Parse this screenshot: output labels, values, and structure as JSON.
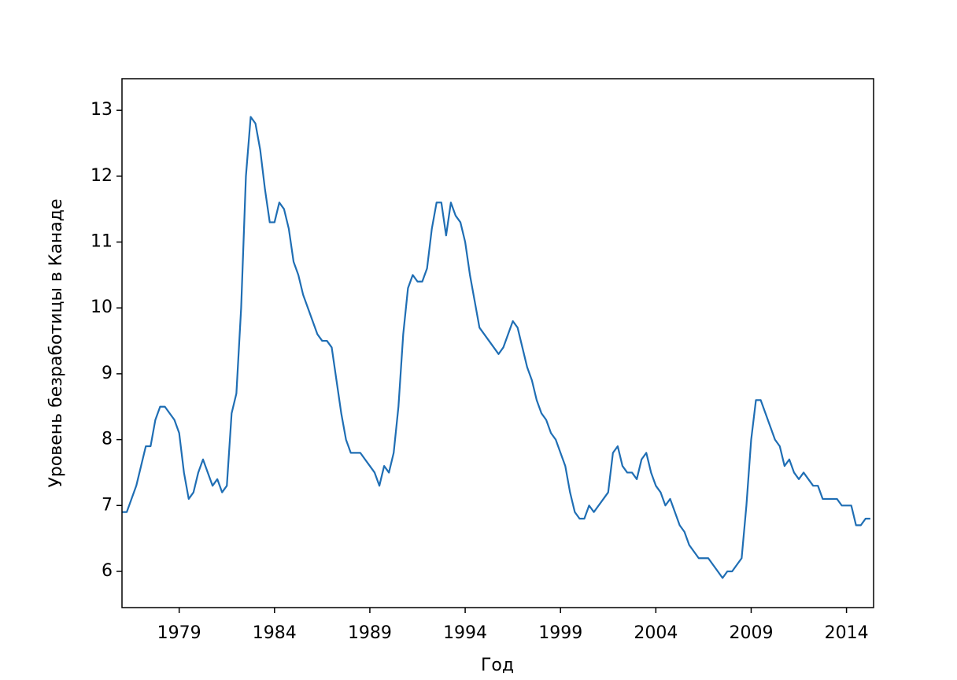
{
  "chart_data": {
    "type": "line",
    "xlabel": "Год",
    "ylabel": "Уровень безработицы в Канаде",
    "color": "#1f6eb4",
    "xlim": [
      1976,
      2015.42
    ],
    "ylim": [
      5.45,
      13.48
    ],
    "xticks": [
      1979,
      1984,
      1989,
      1994,
      1999,
      2004,
      2009,
      2014
    ],
    "yticks": [
      6,
      7,
      8,
      9,
      10,
      11,
      12,
      13
    ],
    "grid": false,
    "x": [
      1976,
      1976.25,
      1976.5,
      1976.75,
      1977,
      1977.25,
      1977.5,
      1977.75,
      1978,
      1978.25,
      1978.5,
      1978.75,
      1979,
      1979.25,
      1979.5,
      1979.75,
      1980,
      1980.25,
      1980.5,
      1980.75,
      1981,
      1981.25,
      1981.5,
      1981.75,
      1982,
      1982.25,
      1982.5,
      1982.75,
      1983,
      1983.25,
      1983.5,
      1983.75,
      1984,
      1984.25,
      1984.5,
      1984.75,
      1985,
      1985.25,
      1985.5,
      1985.75,
      1986,
      1986.25,
      1986.5,
      1986.75,
      1987,
      1987.25,
      1987.5,
      1987.75,
      1988,
      1988.25,
      1988.5,
      1988.75,
      1989,
      1989.25,
      1989.5,
      1989.75,
      1990,
      1990.25,
      1990.5,
      1990.75,
      1991,
      1991.25,
      1991.5,
      1991.75,
      1992,
      1992.25,
      1992.5,
      1992.75,
      1993,
      1993.25,
      1993.5,
      1993.75,
      1994,
      1994.25,
      1994.5,
      1994.75,
      1995,
      1995.25,
      1995.5,
      1995.75,
      1996,
      1996.25,
      1996.5,
      1996.75,
      1997,
      1997.25,
      1997.5,
      1997.75,
      1998,
      1998.25,
      1998.5,
      1998.75,
      1999,
      1999.25,
      1999.5,
      1999.75,
      2000,
      2000.25,
      2000.5,
      2000.75,
      2001,
      2001.25,
      2001.5,
      2001.75,
      2002,
      2002.25,
      2002.5,
      2002.75,
      2003,
      2003.25,
      2003.5,
      2003.75,
      2004,
      2004.25,
      2004.5,
      2004.75,
      2005,
      2005.25,
      2005.5,
      2005.75,
      2006,
      2006.25,
      2006.5,
      2006.75,
      2007,
      2007.25,
      2007.5,
      2007.75,
      2008,
      2008.25,
      2008.5,
      2008.75,
      2009,
      2009.25,
      2009.5,
      2009.75,
      2010,
      2010.25,
      2010.5,
      2010.75,
      2011,
      2011.25,
      2011.5,
      2011.75,
      2012,
      2012.25,
      2012.5,
      2012.75,
      2013,
      2013.25,
      2013.5,
      2013.75,
      2014,
      2014.25,
      2014.5,
      2014.75,
      2015,
      2015.25
    ],
    "values": [
      6.9,
      6.9,
      7.1,
      7.3,
      7.6,
      7.9,
      7.9,
      8.3,
      8.5,
      8.5,
      8.4,
      8.3,
      8.1,
      7.5,
      7.1,
      7.2,
      7.5,
      7.7,
      7.5,
      7.3,
      7.4,
      7.2,
      7.3,
      8.4,
      8.7,
      10.0,
      12.0,
      12.9,
      12.8,
      12.4,
      11.8,
      11.3,
      11.3,
      11.6,
      11.5,
      11.2,
      10.7,
      10.5,
      10.2,
      10.0,
      9.8,
      9.6,
      9.5,
      9.5,
      9.4,
      8.9,
      8.4,
      8.0,
      7.8,
      7.8,
      7.8,
      7.7,
      7.6,
      7.5,
      7.3,
      7.6,
      7.5,
      7.8,
      8.5,
      9.6,
      10.3,
      10.5,
      10.4,
      10.4,
      10.6,
      11.2,
      11.6,
      11.6,
      11.1,
      11.6,
      11.4,
      11.3,
      11.0,
      10.5,
      10.1,
      9.7,
      9.6,
      9.5,
      9.4,
      9.3,
      9.4,
      9.6,
      9.8,
      9.7,
      9.4,
      9.1,
      8.9,
      8.6,
      8.4,
      8.3,
      8.1,
      8.0,
      7.8,
      7.6,
      7.2,
      6.9,
      6.8,
      6.8,
      7.0,
      6.9,
      7.0,
      7.1,
      7.2,
      7.8,
      7.9,
      7.6,
      7.5,
      7.5,
      7.4,
      7.7,
      7.8,
      7.5,
      7.3,
      7.2,
      7.0,
      7.1,
      6.9,
      6.7,
      6.6,
      6.4,
      6.3,
      6.2,
      6.2,
      6.2,
      6.1,
      6.0,
      5.9,
      6.0,
      6.0,
      6.1,
      6.2,
      7.0,
      8.0,
      8.6,
      8.6,
      8.4,
      8.2,
      8.0,
      7.9,
      7.6,
      7.7,
      7.5,
      7.4,
      7.5,
      7.4,
      7.3,
      7.3,
      7.1,
      7.1,
      7.1,
      7.1,
      7.0,
      7.0,
      7.0,
      6.7,
      6.7,
      6.8,
      6.8
    ]
  }
}
